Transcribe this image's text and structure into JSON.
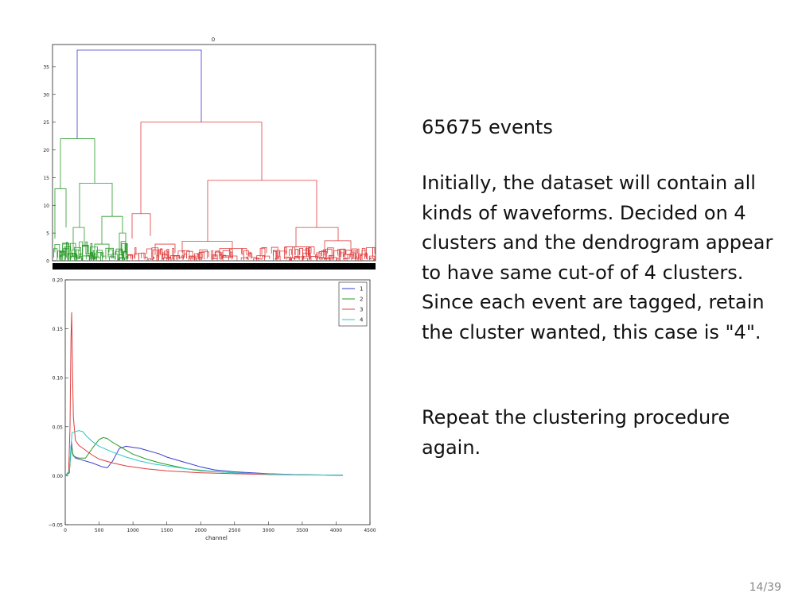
{
  "slide": {
    "count_line": "65675 events",
    "paragraph1": "Initially, the dataset will contain all kinds of waveforms. Decided on 4 clusters and the dendrogram appear to have same cut-of of 4 clusters. Since each event are tagged, retain the cluster wanted, this case is \"4\".",
    "paragraph2": "Repeat the clustering procedure again.",
    "page_number": "14/39"
  },
  "chart_data": [
    {
      "type": "dendrogram",
      "title": "0",
      "ylim": [
        0,
        39
      ],
      "yticks": [
        "0",
        "5",
        "10",
        "15",
        "20",
        "25",
        "30",
        "35"
      ],
      "colors": {
        "root": "#3b3bd1",
        "cluster_a": "#2a9a2a",
        "cluster_b": "#e03c3c"
      },
      "root_height": 38,
      "cluster_heights": {
        "green_top": 22,
        "red_top": 25,
        "red_right": 14.5
      }
    },
    {
      "type": "line",
      "xlabel": "channel",
      "xlim": [
        0,
        4500
      ],
      "ylim": [
        -0.05,
        0.2
      ],
      "xticks": [
        "0",
        "500",
        "1000",
        "1500",
        "2000",
        "2500",
        "3000",
        "3500",
        "4000",
        "4500"
      ],
      "yticks": [
        "−0.05",
        "0.00",
        "0.05",
        "0.10",
        "0.15",
        "0.20"
      ],
      "series": [
        {
          "name": "1",
          "color": "#3b3bd1",
          "points": [
            [
              0,
              0
            ],
            [
              60,
              0.003
            ],
            [
              90,
              0.035
            ],
            [
              110,
              0.022
            ],
            [
              150,
              0.018
            ],
            [
              250,
              0.016
            ],
            [
              400,
              0.013
            ],
            [
              550,
              0.009
            ],
            [
              620,
              0.008
            ],
            [
              700,
              0.015
            ],
            [
              800,
              0.028
            ],
            [
              900,
              0.03
            ],
            [
              1000,
              0.029
            ],
            [
              1100,
              0.028
            ],
            [
              1200,
              0.026
            ],
            [
              1300,
              0.024
            ],
            [
              1400,
              0.022
            ],
            [
              1500,
              0.019
            ],
            [
              1600,
              0.017
            ],
            [
              1800,
              0.013
            ],
            [
              2000,
              0.009
            ],
            [
              2200,
              0.006
            ],
            [
              2500,
              0.004
            ],
            [
              3000,
              0.002
            ],
            [
              3500,
              0.001
            ],
            [
              4100,
              0.0005
            ]
          ]
        },
        {
          "name": "2",
          "color": "#2a9a2a",
          "points": [
            [
              0,
              0
            ],
            [
              60,
              0.003
            ],
            [
              90,
              0.03
            ],
            [
              120,
              0.02
            ],
            [
              200,
              0.018
            ],
            [
              300,
              0.018
            ],
            [
              400,
              0.028
            ],
            [
              500,
              0.037
            ],
            [
              560,
              0.039
            ],
            [
              620,
              0.038
            ],
            [
              700,
              0.034
            ],
            [
              800,
              0.03
            ],
            [
              900,
              0.026
            ],
            [
              1000,
              0.022
            ],
            [
              1200,
              0.017
            ],
            [
              1400,
              0.013
            ],
            [
              1600,
              0.01
            ],
            [
              1800,
              0.007
            ],
            [
              2000,
              0.005
            ],
            [
              2500,
              0.003
            ],
            [
              3000,
              0.0015
            ],
            [
              3500,
              0.001
            ],
            [
              4100,
              0.0005
            ]
          ]
        },
        {
          "name": "3",
          "color": "#e03c3c",
          "points": [
            [
              0,
              0
            ],
            [
              50,
              0.004
            ],
            [
              70,
              0.05
            ],
            [
              85,
              0.14
            ],
            [
              95,
              0.167
            ],
            [
              105,
              0.12
            ],
            [
              120,
              0.06
            ],
            [
              150,
              0.036
            ],
            [
              200,
              0.031
            ],
            [
              300,
              0.026
            ],
            [
              400,
              0.021
            ],
            [
              500,
              0.017
            ],
            [
              700,
              0.013
            ],
            [
              900,
              0.01
            ],
            [
              1200,
              0.007
            ],
            [
              1500,
              0.005
            ],
            [
              2000,
              0.003
            ],
            [
              2500,
              0.002
            ],
            [
              3000,
              0.0012
            ],
            [
              3500,
              0.0008
            ],
            [
              4100,
              0.0004
            ]
          ]
        },
        {
          "name": "4",
          "color": "#2ec7c7",
          "points": [
            [
              0,
              0
            ],
            [
              60,
              0.005
            ],
            [
              100,
              0.044
            ],
            [
              150,
              0.045
            ],
            [
              200,
              0.046
            ],
            [
              260,
              0.045
            ],
            [
              320,
              0.04
            ],
            [
              400,
              0.035
            ],
            [
              500,
              0.03
            ],
            [
              600,
              0.027
            ],
            [
              700,
              0.024
            ],
            [
              900,
              0.019
            ],
            [
              1100,
              0.015
            ],
            [
              1300,
              0.012
            ],
            [
              1500,
              0.01
            ],
            [
              1800,
              0.007
            ],
            [
              2100,
              0.005
            ],
            [
              2500,
              0.003
            ],
            [
              3000,
              0.0018
            ],
            [
              3500,
              0.001
            ],
            [
              4100,
              0.0005
            ]
          ]
        }
      ]
    }
  ]
}
